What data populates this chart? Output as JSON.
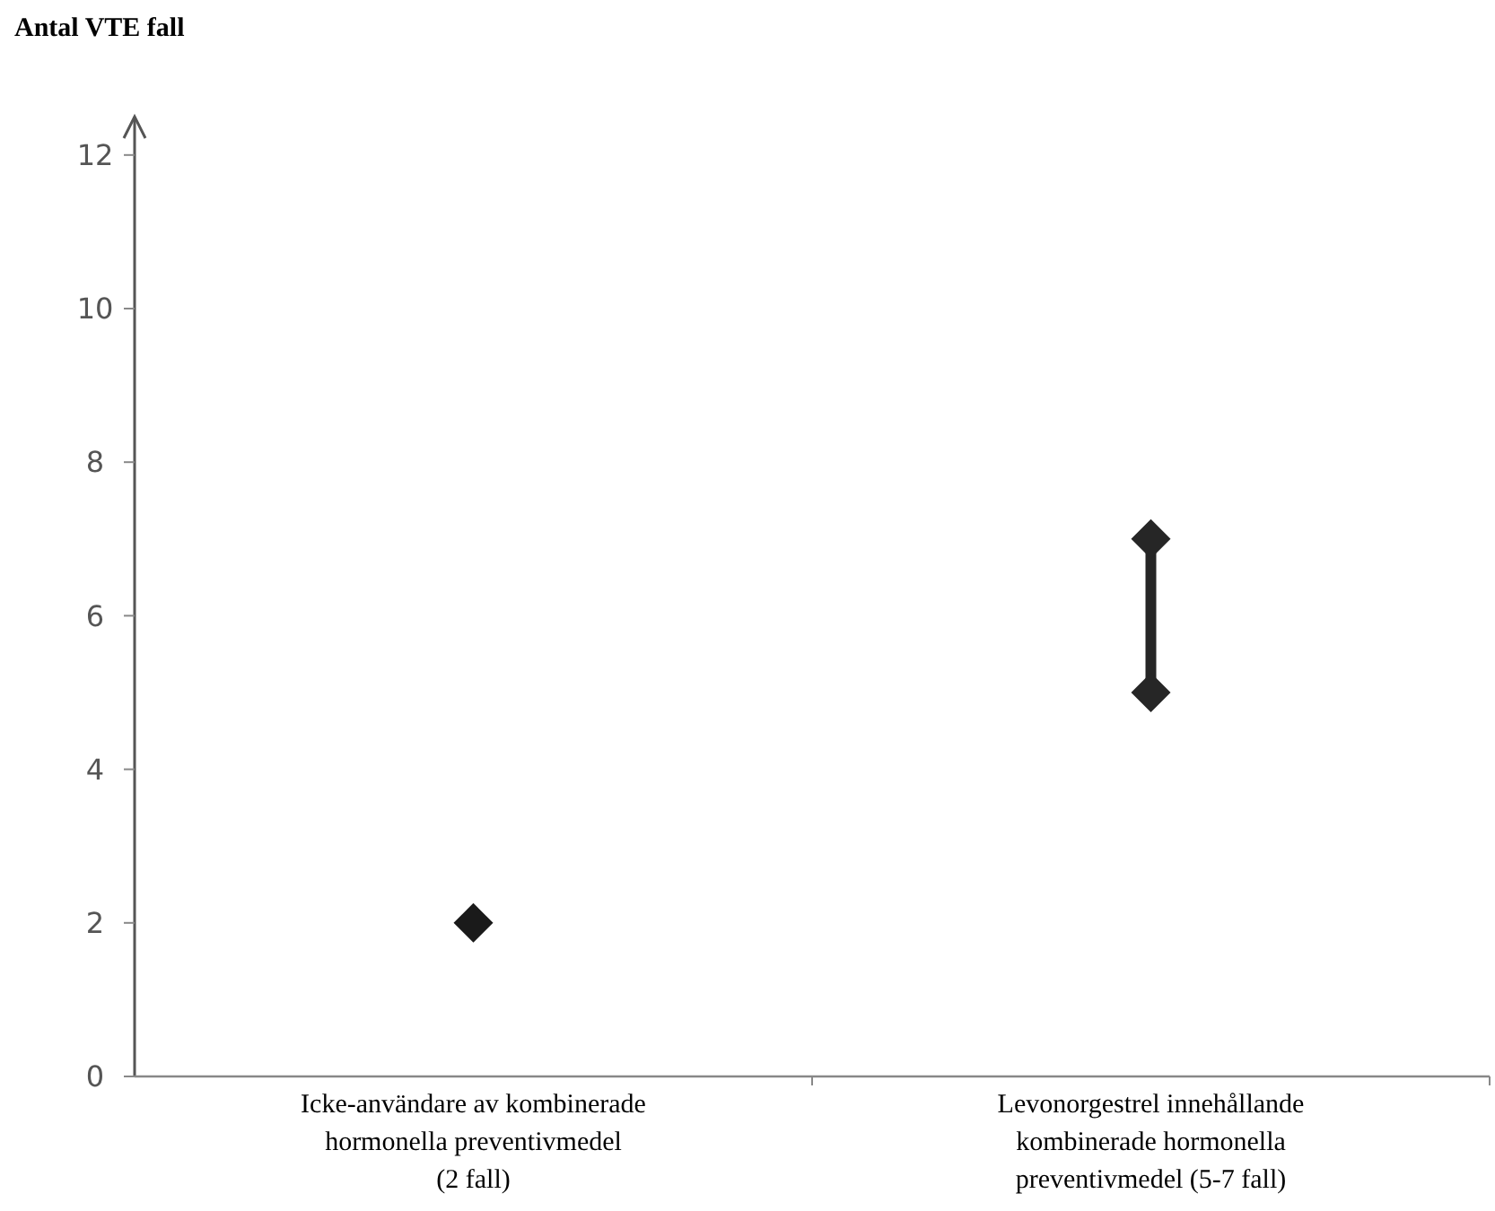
{
  "chart_data": {
    "type": "scatter",
    "ylabel": "Antal VTE fall",
    "categories": [
      "Icke-användare av kombinerade hormonella preventivmedel (2 fall)",
      "Levonorgestrel innehållande kombinerade hormonella preventivmedel (5-7 fall)"
    ],
    "ylim": [
      0,
      12.5
    ],
    "yticks": [
      0,
      2,
      4,
      6,
      8,
      10,
      12
    ],
    "grid": false,
    "legend": false,
    "marker": "diamond",
    "series": [
      {
        "color": "#1a1a1a",
        "x": [
          "Icke-användare av kombinerade hormonella preventivmedel (2 fall)"
        ],
        "values": [
          2
        ]
      },
      {
        "type": "line",
        "color": "#262626",
        "x": [
          "Levonorgestrel innehållande kombinerade hormonella preventivmedel (5-7 fall)",
          "Levonorgestrel innehållande kombinerade hormonella preventivmedel (5-7 fall)"
        ],
        "values": [
          5,
          7
        ]
      }
    ]
  }
}
